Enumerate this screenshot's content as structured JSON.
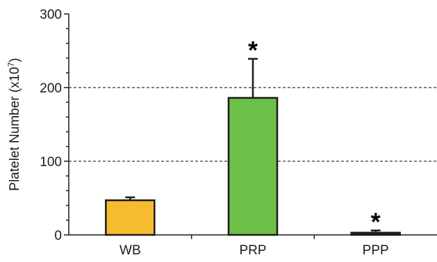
{
  "chart_data": {
    "type": "bar",
    "categories": [
      "WB",
      "PRP",
      "PPP"
    ],
    "values": [
      47,
      186,
      3
    ],
    "error_upper": [
      51,
      239,
      6
    ],
    "significance": [
      "",
      "*",
      "*"
    ],
    "colors": [
      "#f5bd2e",
      "#6cbf47",
      "#222222"
    ],
    "ylabel": "Platelet Number (x10",
    "ylabel_sup": "7",
    "ylabel_end": ")",
    "ylim": [
      0,
      300
    ],
    "yticks": [
      0,
      100,
      200,
      300
    ],
    "gridlines": [
      100,
      200
    ],
    "grid": "dashed, major ticks only"
  }
}
